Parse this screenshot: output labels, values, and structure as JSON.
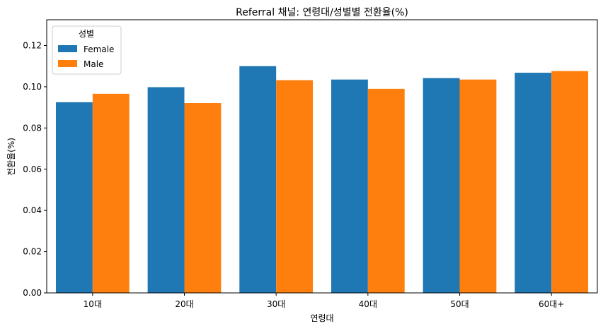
{
  "chart_data": {
    "type": "bar",
    "title": "Referral 채널: 연령대/성별별 전환율(%)",
    "xlabel": "연령대",
    "ylabel": "전환율(%)",
    "categories": [
      "10대",
      "20대",
      "30대",
      "40대",
      "50대",
      "60대+"
    ],
    "series": [
      {
        "name": "Female",
        "color": "#1f77b4",
        "values": [
          0.0925,
          0.0998,
          0.11,
          0.1035,
          0.1042,
          0.1068
        ]
      },
      {
        "name": "Male",
        "color": "#ff7f0e",
        "values": [
          0.0966,
          0.0921,
          0.1032,
          0.099,
          0.1035,
          0.1076
        ]
      }
    ],
    "ylim": [
      0,
      0.1325
    ],
    "yticks": [
      "0.00",
      "0.02",
      "0.04",
      "0.06",
      "0.08",
      "0.10",
      "0.12"
    ],
    "legend": {
      "title": "성별",
      "placement": "top-left"
    },
    "grid": false
  }
}
